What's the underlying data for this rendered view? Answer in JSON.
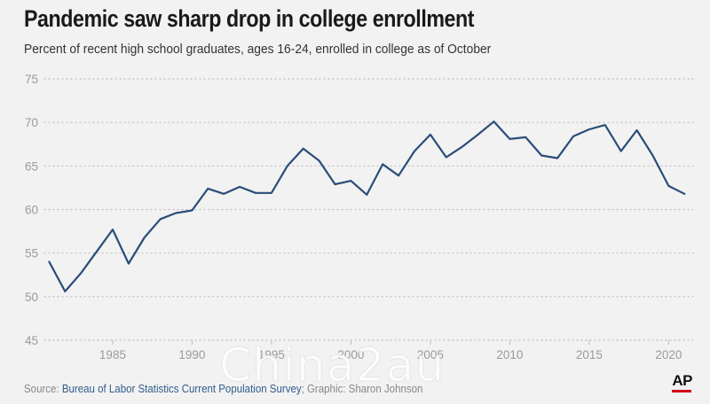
{
  "chart_data": {
    "type": "line",
    "title": "Pandemic saw sharp drop in college enrollment",
    "subtitle": "Percent of recent high school graduates, ages 16-24, enrolled in college as of October",
    "xlabel": "",
    "ylabel": "",
    "xlim": [
      1980.7,
      2021.6
    ],
    "ylim": [
      45,
      75
    ],
    "yticks": [
      45,
      50,
      55,
      60,
      65,
      70,
      75
    ],
    "xticks": [
      1985,
      1990,
      1995,
      2000,
      2005,
      2010,
      2015,
      2020
    ],
    "grid": "horizontal-dotted",
    "line_color": "#2a4d78",
    "series": [
      {
        "x": [
          1981,
          1982,
          1983,
          1984,
          1985,
          1986,
          1987,
          1988,
          1989,
          1990,
          1991,
          1992,
          1993,
          1994,
          1995,
          1996,
          1997,
          1998,
          1999,
          2000,
          2001,
          2002,
          2003,
          2004,
          2005,
          2006,
          2007,
          2008,
          2009,
          2010,
          2011,
          2012,
          2013,
          2014,
          2015,
          2016,
          2017,
          2018,
          2019,
          2020,
          2021
        ],
        "values": [
          54.0,
          50.6,
          52.7,
          55.2,
          57.7,
          53.8,
          56.8,
          58.9,
          59.6,
          59.9,
          62.4,
          61.8,
          62.6,
          61.9,
          61.9,
          65.0,
          67.0,
          65.6,
          62.9,
          63.3,
          61.7,
          65.2,
          63.9,
          66.7,
          68.6,
          66.0,
          67.2,
          68.6,
          70.1,
          68.1,
          68.3,
          66.2,
          65.9,
          68.4,
          69.2,
          69.7,
          66.7,
          69.1,
          66.2,
          62.7,
          61.8
        ]
      }
    ]
  },
  "source": {
    "prefix": "Source: ",
    "link_text": "Bureau of Labor Statistics Current Population Survey",
    "suffix": "; Graphic: Sharon Johnson"
  },
  "logo": "AP",
  "watermark": "Chinа2au"
}
